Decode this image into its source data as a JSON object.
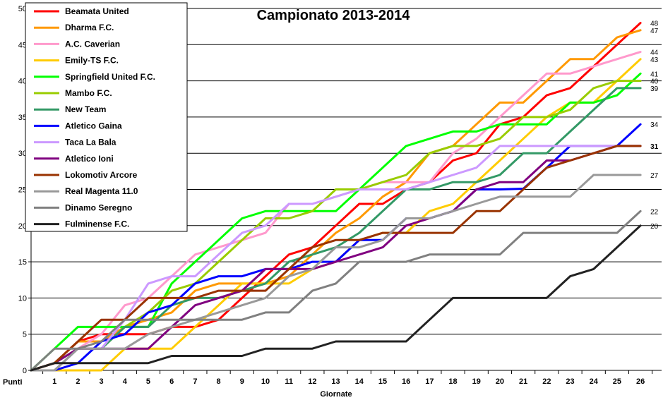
{
  "chart_data": {
    "type": "line",
    "title": "Campionato 2013-2014",
    "xlabel": "Giornate",
    "ylabel": "Punti",
    "x": [
      0,
      1,
      2,
      3,
      4,
      5,
      6,
      7,
      8,
      9,
      10,
      11,
      12,
      13,
      14,
      15,
      16,
      17,
      18,
      19,
      20,
      21,
      22,
      23,
      24,
      25,
      26
    ],
    "xticks": [
      "1",
      "2",
      "3",
      "4",
      "5",
      "6",
      "7",
      "8",
      "9",
      "10",
      "11",
      "12",
      "13",
      "14",
      "15",
      "16",
      "17",
      "18",
      "19",
      "20",
      "21",
      "22",
      "23",
      "24",
      "25",
      "26"
    ],
    "yticks": [
      "0",
      "5",
      "10",
      "15",
      "20",
      "25",
      "30",
      "35",
      "40",
      "45",
      "50"
    ],
    "ylim": [
      0,
      50
    ],
    "xlim": [
      0,
      26.9
    ],
    "grid": true,
    "legend_position": "top-left",
    "series": [
      {
        "name": "Beamata United",
        "color": "#ff0000",
        "values": [
          0,
          1,
          4,
          5,
          5,
          5,
          6,
          6,
          7,
          10,
          13,
          16,
          17,
          20,
          23,
          23,
          25,
          26,
          29,
          30,
          34,
          35,
          38,
          39,
          42,
          45,
          48
        ],
        "end_label": "48"
      },
      {
        "name": "Dharma F.C.",
        "color": "#ff9900",
        "values": [
          0,
          1,
          4,
          4,
          6,
          7,
          8,
          11,
          12,
          12,
          12,
          13,
          16,
          19,
          21,
          24,
          26,
          30,
          31,
          34,
          37,
          37,
          40,
          43,
          43,
          46,
          47
        ],
        "end_label": "47"
      },
      {
        "name": "A.C. Caverian",
        "color": "#ff99cc",
        "values": [
          0,
          0,
          3,
          5,
          9,
          10,
          13,
          16,
          17,
          18,
          19,
          23,
          23,
          24,
          25,
          26,
          26,
          26,
          30,
          32,
          35,
          38,
          41,
          41,
          42,
          43,
          44
        ],
        "end_label": "44"
      },
      {
        "name": "Emily-TS F.C.",
        "color": "#ffcc00",
        "values": [
          0,
          0,
          0,
          0,
          3,
          3,
          3,
          6,
          9,
          12,
          12,
          12,
          14,
          15,
          18,
          19,
          19,
          22,
          23,
          26,
          29,
          32,
          35,
          37,
          37,
          40,
          43
        ],
        "end_label": "43"
      },
      {
        "name": "Springfield United F.C.",
        "color": "#00ff00",
        "values": [
          0,
          3,
          6,
          6,
          6,
          6,
          12,
          15,
          18,
          21,
          22,
          22,
          22,
          22,
          25,
          28,
          31,
          32,
          33,
          33,
          34,
          34,
          34,
          37,
          37,
          38,
          41
        ],
        "end_label": "41"
      },
      {
        "name": "Mambo F.C.",
        "color": "#99cc00",
        "values": [
          0,
          1,
          3,
          3,
          6,
          8,
          11,
          12,
          15,
          18,
          21,
          21,
          22,
          25,
          25,
          26,
          27,
          30,
          31,
          31,
          32,
          35,
          35,
          36,
          39,
          40,
          40
        ],
        "end_label": "40"
      },
      {
        "name": "New Team",
        "color": "#339966",
        "values": [
          0,
          0,
          3,
          3,
          6,
          6,
          9,
          10,
          10,
          11,
          12,
          15,
          16,
          17,
          19,
          22,
          25,
          25,
          26,
          26,
          27,
          30,
          30,
          33,
          36,
          39,
          39
        ],
        "end_label": "39"
      },
      {
        "name": "Atletico Gaina",
        "color": "#0000ff",
        "values": [
          0,
          0,
          1,
          4,
          5,
          8,
          9,
          12,
          13,
          13,
          14,
          14,
          15,
          15,
          18,
          18,
          21,
          21,
          22,
          25,
          25,
          25.1,
          28,
          31,
          31,
          31,
          34
        ],
        "end_label": "34"
      },
      {
        "name": "Taca La Bala",
        "color": "#cc99ff",
        "values": [
          0,
          0,
          3,
          3,
          7,
          12,
          13,
          13,
          16,
          19,
          20,
          23,
          23,
          24,
          25,
          25,
          25,
          26,
          27,
          28,
          31,
          31,
          31,
          31,
          31,
          31,
          31
        ],
        "end_label": "31"
      },
      {
        "name": "Atletico Ioni",
        "color": "#800080",
        "values": [
          0,
          1,
          3,
          3,
          3,
          3,
          6,
          9,
          10,
          11,
          14,
          14,
          14,
          15,
          16,
          17,
          20,
          21,
          22,
          25,
          26,
          26,
          29,
          29,
          30,
          31,
          31
        ],
        "end_label": "31"
      },
      {
        "name": "Lokomotiv Arcore",
        "color": "#993300",
        "values": [
          0,
          1,
          4,
          7,
          7,
          10,
          10,
          10,
          11,
          11,
          11,
          14,
          17,
          18,
          18,
          19,
          19,
          19,
          19,
          22,
          22,
          25,
          28,
          29,
          30,
          31,
          31
        ],
        "end_label": "31"
      },
      {
        "name": "Real Magenta 11.0",
        "color": "#999999",
        "values": [
          0,
          0,
          3,
          3,
          3,
          5,
          6,
          7,
          8,
          9,
          10,
          13,
          14,
          17,
          17,
          18,
          21,
          21,
          22,
          23,
          24,
          24,
          24,
          24,
          27,
          27,
          27
        ],
        "end_label": "27"
      },
      {
        "name": "Dinamo Seregno",
        "color": "#808080",
        "values": [
          0,
          3,
          3,
          4,
          7,
          7,
          7,
          7,
          7,
          7,
          8,
          8,
          11,
          12,
          15,
          15,
          15,
          16,
          16,
          16,
          16,
          19,
          19,
          19,
          19,
          19,
          22
        ],
        "end_label": "22"
      },
      {
        "name": "Fulminense F.C.",
        "color": "#222222",
        "values": [
          0,
          1,
          1,
          1,
          1,
          1,
          2,
          2,
          2,
          2,
          3,
          3,
          3,
          4,
          4,
          4,
          4,
          7,
          10,
          10,
          10,
          10,
          10,
          13,
          14,
          17,
          20
        ],
        "end_label": "20"
      }
    ]
  }
}
